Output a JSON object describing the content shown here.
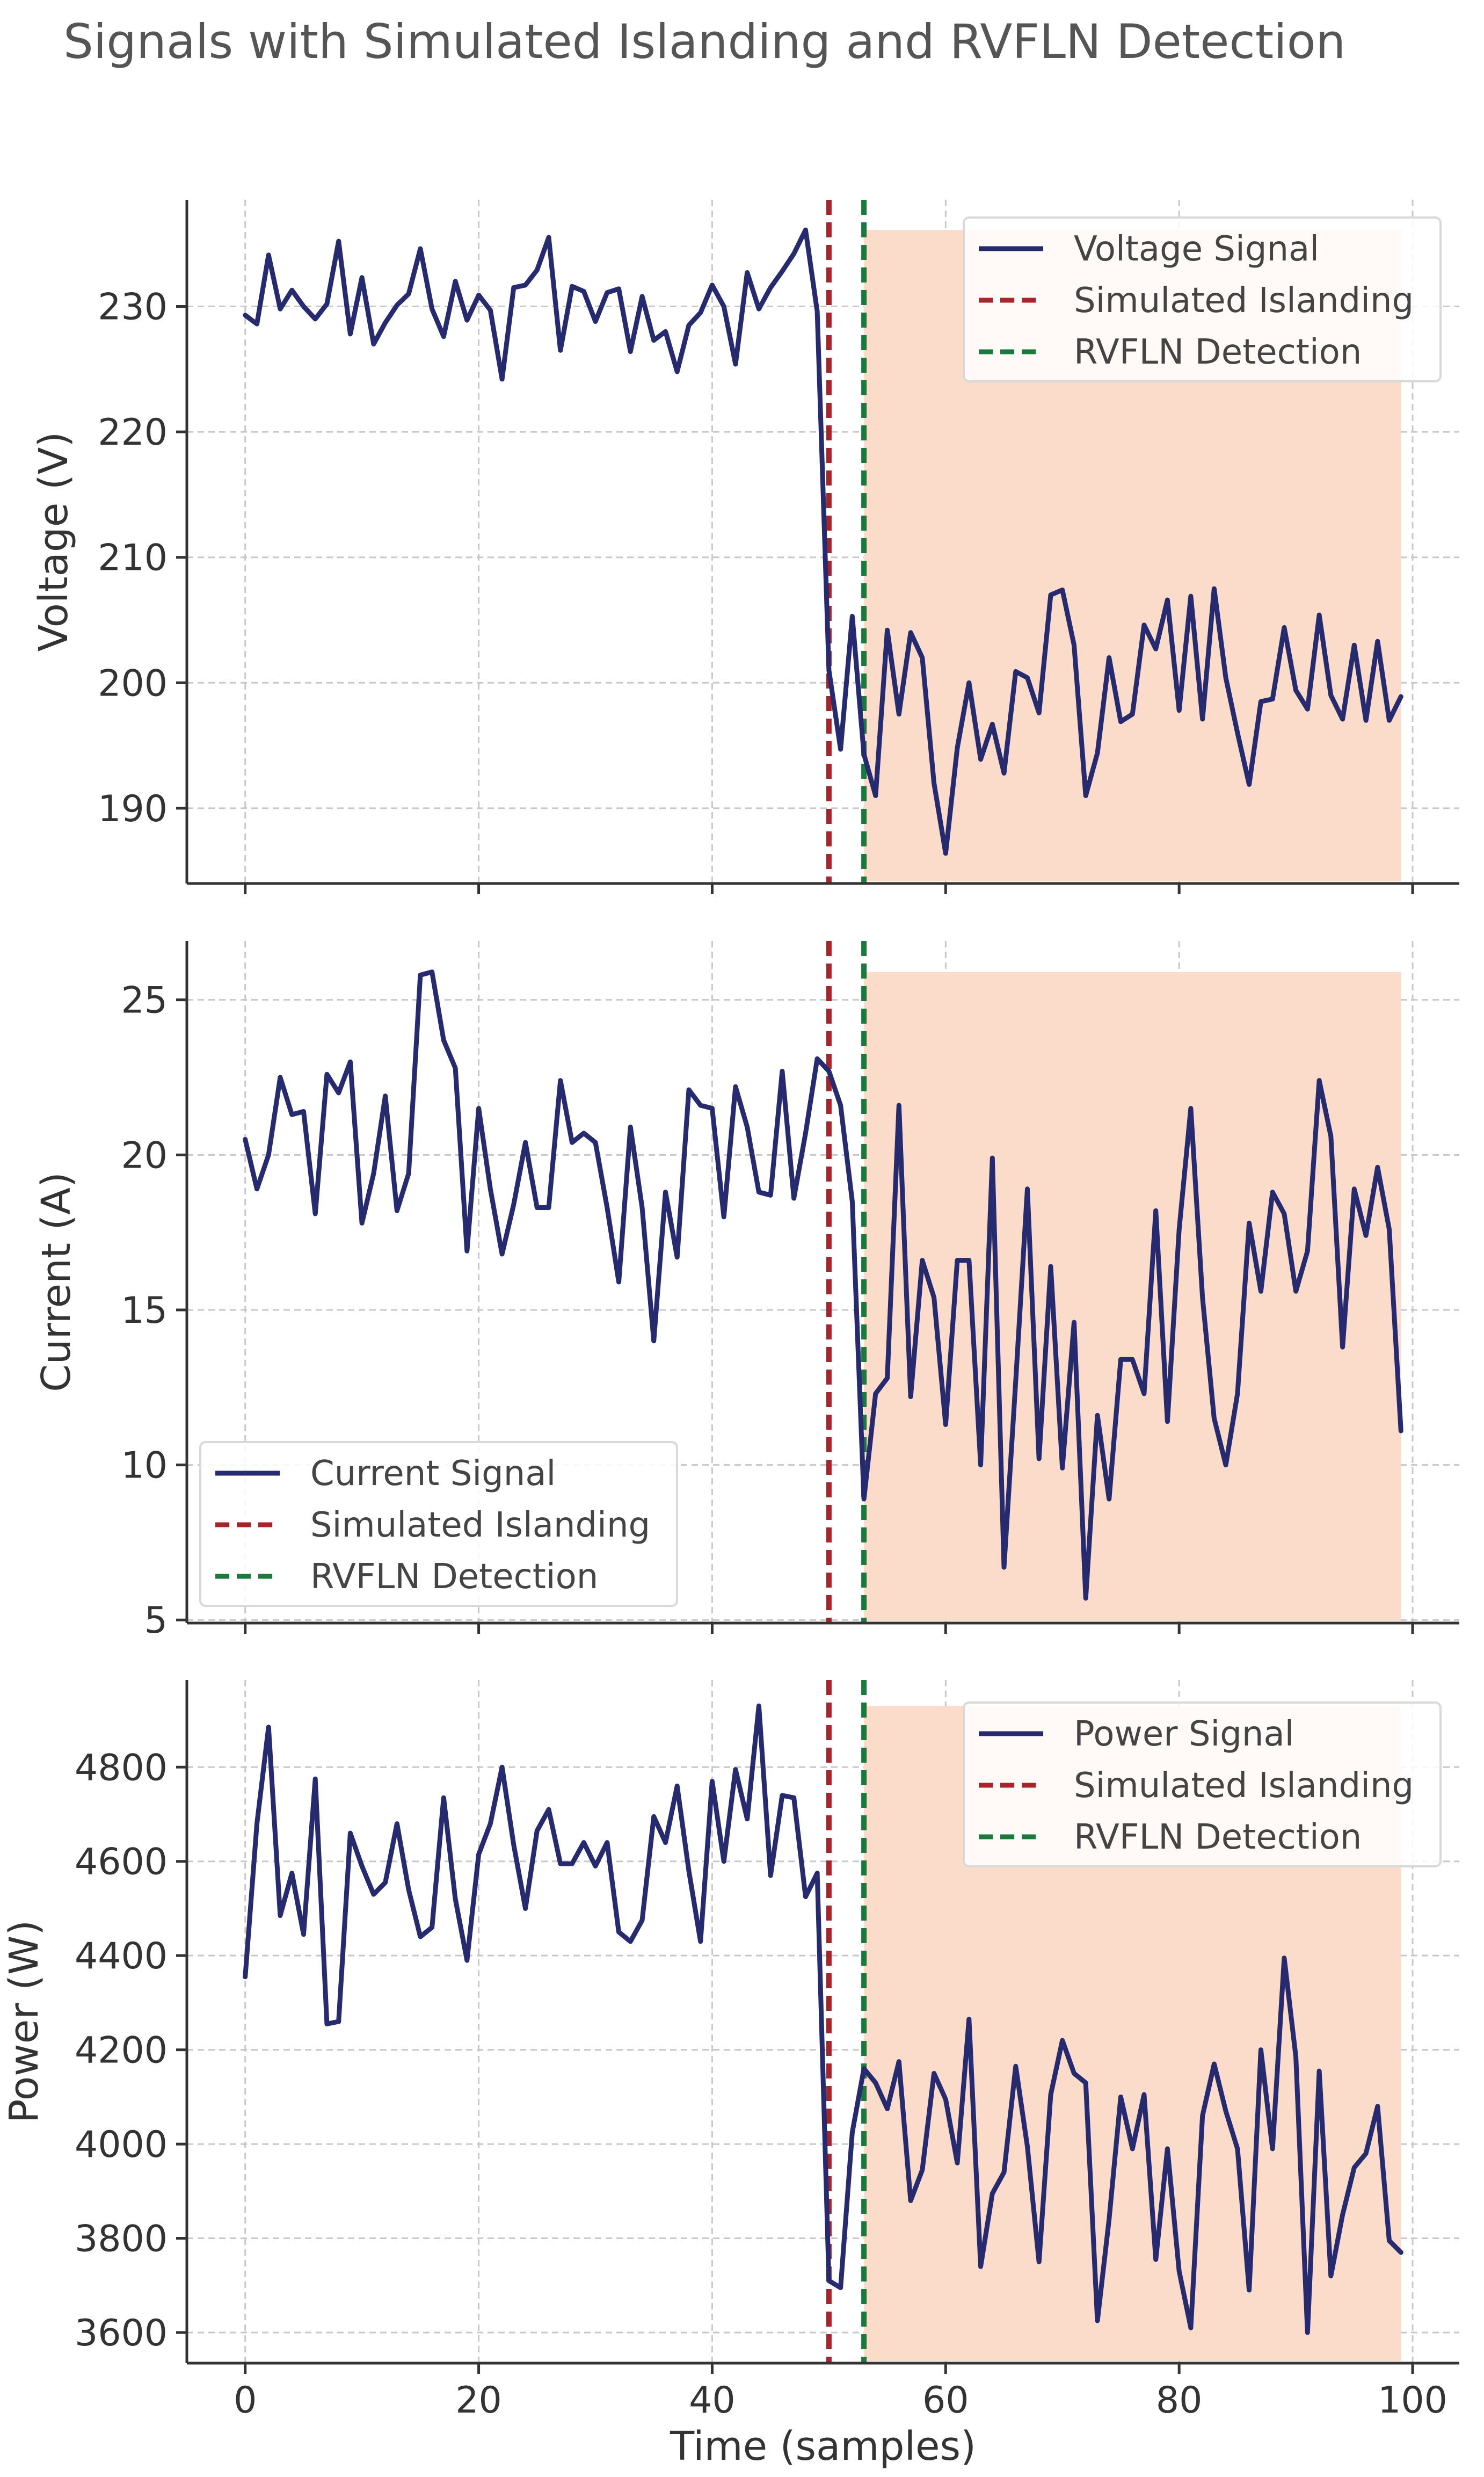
{
  "figure": {
    "title": "Signals with Simulated Islanding and RVFLN Detection"
  },
  "colors": {
    "signal": "#262a6e",
    "islanding": "#a8232a",
    "detection": "#1a7a3e",
    "shade": "#fbdccb",
    "grid": "#c8c8c8",
    "axis": "#333333"
  },
  "chart_data": [
    {
      "type": "line",
      "name": "voltage",
      "xlabel": "",
      "ylabel": "Voltage (V)",
      "xlim": [
        -5,
        104
      ],
      "ylim": [
        184,
        238.5
      ],
      "xticks": [
        0,
        20,
        40,
        60,
        80,
        100
      ],
      "xtick_labels_visible": false,
      "yticks": [
        190,
        200,
        210,
        220,
        230
      ],
      "ytick_labels": [
        "190",
        "200",
        "210",
        "220",
        "230"
      ],
      "islanding_x": 50,
      "detection_x": 53,
      "shade": {
        "x_start": 53,
        "x_end": 99,
        "y_max": 236.1
      },
      "legend": {
        "position": "top-right",
        "entries": [
          "Voltage Signal",
          "Simulated Islanding",
          "RVFLN Detection"
        ]
      },
      "x": [
        0,
        1,
        2,
        3,
        4,
        5,
        6,
        7,
        8,
        9,
        10,
        11,
        12,
        13,
        14,
        15,
        16,
        17,
        18,
        19,
        20,
        21,
        22,
        23,
        24,
        25,
        26,
        27,
        28,
        29,
        30,
        31,
        32,
        33,
        34,
        35,
        36,
        37,
        38,
        39,
        40,
        41,
        42,
        43,
        44,
        45,
        46,
        47,
        48,
        49,
        50,
        51,
        52,
        53,
        54,
        55,
        56,
        57,
        58,
        59,
        60,
        61,
        62,
        63,
        64,
        65,
        66,
        67,
        68,
        69,
        70,
        71,
        72,
        73,
        74,
        75,
        76,
        77,
        78,
        79,
        80,
        81,
        82,
        83,
        84,
        85,
        86,
        87,
        88,
        89,
        90,
        91,
        92,
        93,
        94,
        95,
        96,
        97,
        98,
        99
      ],
      "values": [
        229.3,
        228.6,
        234.1,
        229.8,
        231.3,
        230.0,
        229.0,
        230.2,
        235.2,
        227.8,
        232.3,
        227.0,
        228.7,
        230.1,
        231.0,
        234.6,
        229.8,
        227.6,
        232.0,
        228.9,
        230.9,
        229.7,
        224.2,
        231.5,
        231.7,
        232.9,
        235.5,
        226.5,
        231.6,
        231.2,
        228.8,
        231.1,
        231.4,
        226.4,
        230.8,
        227.3,
        228.0,
        224.8,
        228.5,
        229.5,
        231.7,
        230.0,
        225.4,
        232.7,
        229.8,
        231.5,
        232.8,
        234.2,
        236.1,
        229.6,
        201.0,
        194.7,
        205.3,
        194.3,
        191.0,
        204.2,
        197.5,
        204.0,
        202.0,
        192.0,
        186.4,
        194.8,
        200.0,
        193.9,
        196.7,
        192.8,
        200.9,
        200.4,
        197.6,
        207.0,
        207.4,
        203.0,
        191.0,
        194.4,
        202.0,
        196.9,
        197.5,
        204.6,
        202.7,
        206.6,
        197.8,
        206.9,
        197.1,
        207.5,
        200.4,
        196.0,
        191.9,
        198.5,
        198.7,
        204.4,
        199.4,
        197.9,
        205.4,
        199.0,
        197.1,
        203.0,
        197.0,
        203.3,
        197.0,
        198.9
      ]
    },
    {
      "type": "line",
      "name": "current",
      "xlabel": "",
      "ylabel": "Current (A)",
      "xlim": [
        -5,
        104
      ],
      "ylim": [
        4.9,
        26.9
      ],
      "xticks": [
        0,
        20,
        40,
        60,
        80,
        100
      ],
      "xtick_labels_visible": false,
      "yticks": [
        5,
        10,
        15,
        20,
        25
      ],
      "ytick_labels": [
        "5",
        "10",
        "15",
        "20",
        "25"
      ],
      "islanding_x": 50,
      "detection_x": 53,
      "shade": {
        "x_start": 53,
        "x_end": 99,
        "y_max": 25.9
      },
      "legend": {
        "position": "bottom-left",
        "entries": [
          "Current Signal",
          "Simulated Islanding",
          "RVFLN Detection"
        ]
      },
      "x": [
        0,
        1,
        2,
        3,
        4,
        5,
        6,
        7,
        8,
        9,
        10,
        11,
        12,
        13,
        14,
        15,
        16,
        17,
        18,
        19,
        20,
        21,
        22,
        23,
        24,
        25,
        26,
        27,
        28,
        29,
        30,
        31,
        32,
        33,
        34,
        35,
        36,
        37,
        38,
        39,
        40,
        41,
        42,
        43,
        44,
        45,
        46,
        47,
        48,
        49,
        50,
        51,
        52,
        53,
        54,
        55,
        56,
        57,
        58,
        59,
        60,
        61,
        62,
        63,
        64,
        65,
        66,
        67,
        68,
        69,
        70,
        71,
        72,
        73,
        74,
        75,
        76,
        77,
        78,
        79,
        80,
        81,
        82,
        83,
        84,
        85,
        86,
        87,
        88,
        89,
        90,
        91,
        92,
        93,
        94,
        95,
        96,
        97,
        98,
        99
      ],
      "values": [
        20.5,
        18.9,
        20.0,
        22.5,
        21.3,
        21.4,
        18.1,
        22.6,
        22.0,
        23.0,
        17.8,
        19.4,
        21.9,
        18.2,
        19.4,
        25.8,
        25.9,
        23.7,
        22.8,
        16.9,
        21.5,
        18.9,
        16.8,
        18.4,
        20.4,
        18.3,
        18.3,
        22.4,
        20.4,
        20.7,
        20.4,
        18.3,
        15.9,
        20.9,
        18.3,
        14.0,
        18.8,
        16.7,
        22.1,
        21.6,
        21.5,
        18.0,
        22.2,
        20.9,
        18.8,
        18.7,
        22.7,
        18.6,
        20.7,
        23.1,
        22.7,
        21.6,
        18.5,
        8.9,
        12.3,
        12.8,
        21.6,
        12.2,
        16.6,
        15.4,
        11.3,
        16.6,
        16.6,
        10.0,
        19.9,
        6.7,
        12.7,
        18.9,
        10.2,
        16.4,
        9.9,
        14.6,
        5.7,
        11.6,
        8.9,
        13.4,
        13.4,
        12.3,
        18.2,
        11.4,
        17.6,
        21.5,
        15.4,
        11.5,
        10.0,
        12.3,
        17.8,
        15.6,
        18.8,
        18.1,
        15.6,
        16.9,
        22.4,
        20.6,
        13.8,
        18.9,
        17.4,
        19.6,
        17.6,
        11.1
      ]
    },
    {
      "type": "line",
      "name": "power",
      "xlabel": "Time (samples)",
      "ylabel": "Power (W)",
      "xlim": [
        -5,
        104
      ],
      "ylim": [
        3535,
        4985
      ],
      "xticks": [
        0,
        20,
        40,
        60,
        80,
        100
      ],
      "xtick_labels": [
        "0",
        "20",
        "40",
        "60",
        "80",
        "100"
      ],
      "xtick_labels_visible": true,
      "yticks": [
        3600,
        3800,
        4000,
        4200,
        4400,
        4600,
        4800
      ],
      "ytick_labels": [
        "3600",
        "3800",
        "4000",
        "4200",
        "4400",
        "4600",
        "4800"
      ],
      "islanding_x": 50,
      "detection_x": 53,
      "shade": {
        "x_start": 53,
        "x_end": 99,
        "y_max": 4930
      },
      "legend": {
        "position": "top-right",
        "entries": [
          "Power Signal",
          "Simulated Islanding",
          "RVFLN Detection"
        ]
      },
      "x": [
        0,
        1,
        2,
        3,
        4,
        5,
        6,
        7,
        8,
        9,
        10,
        11,
        12,
        13,
        14,
        15,
        16,
        17,
        18,
        19,
        20,
        21,
        22,
        23,
        24,
        25,
        26,
        27,
        28,
        29,
        30,
        31,
        32,
        33,
        34,
        35,
        36,
        37,
        38,
        39,
        40,
        41,
        42,
        43,
        44,
        45,
        46,
        47,
        48,
        49,
        50,
        51,
        52,
        53,
        54,
        55,
        56,
        57,
        58,
        59,
        60,
        61,
        62,
        63,
        64,
        65,
        66,
        67,
        68,
        69,
        70,
        71,
        72,
        73,
        74,
        75,
        76,
        77,
        78,
        79,
        80,
        81,
        82,
        83,
        84,
        85,
        86,
        87,
        88,
        89,
        90,
        91,
        92,
        93,
        94,
        95,
        96,
        97,
        98,
        99
      ],
      "values": [
        4355,
        4680,
        4885,
        4485,
        4575,
        4445,
        4775,
        4255,
        4260,
        4660,
        4590,
        4530,
        4555,
        4680,
        4540,
        4440,
        4460,
        4735,
        4520,
        4390,
        4615,
        4680,
        4800,
        4635,
        4500,
        4665,
        4710,
        4595,
        4595,
        4640,
        4590,
        4640,
        4450,
        4430,
        4475,
        4695,
        4640,
        4760,
        4580,
        4430,
        4770,
        4600,
        4795,
        4690,
        4930,
        4570,
        4740,
        4735,
        4525,
        4575,
        3710,
        3695,
        4025,
        4160,
        4130,
        4075,
        4175,
        3880,
        3945,
        4150,
        4095,
        3960,
        4265,
        3740,
        3895,
        3940,
        4165,
        3995,
        3750,
        4105,
        4220,
        4150,
        4130,
        3625,
        3840,
        4100,
        3990,
        4105,
        3755,
        3990,
        3730,
        3610,
        4060,
        4170,
        4070,
        3990,
        3690,
        4200,
        3990,
        4395,
        4185,
        3600,
        4155,
        3720,
        3850,
        3950,
        3980,
        4080,
        3795,
        3770
      ]
    }
  ]
}
